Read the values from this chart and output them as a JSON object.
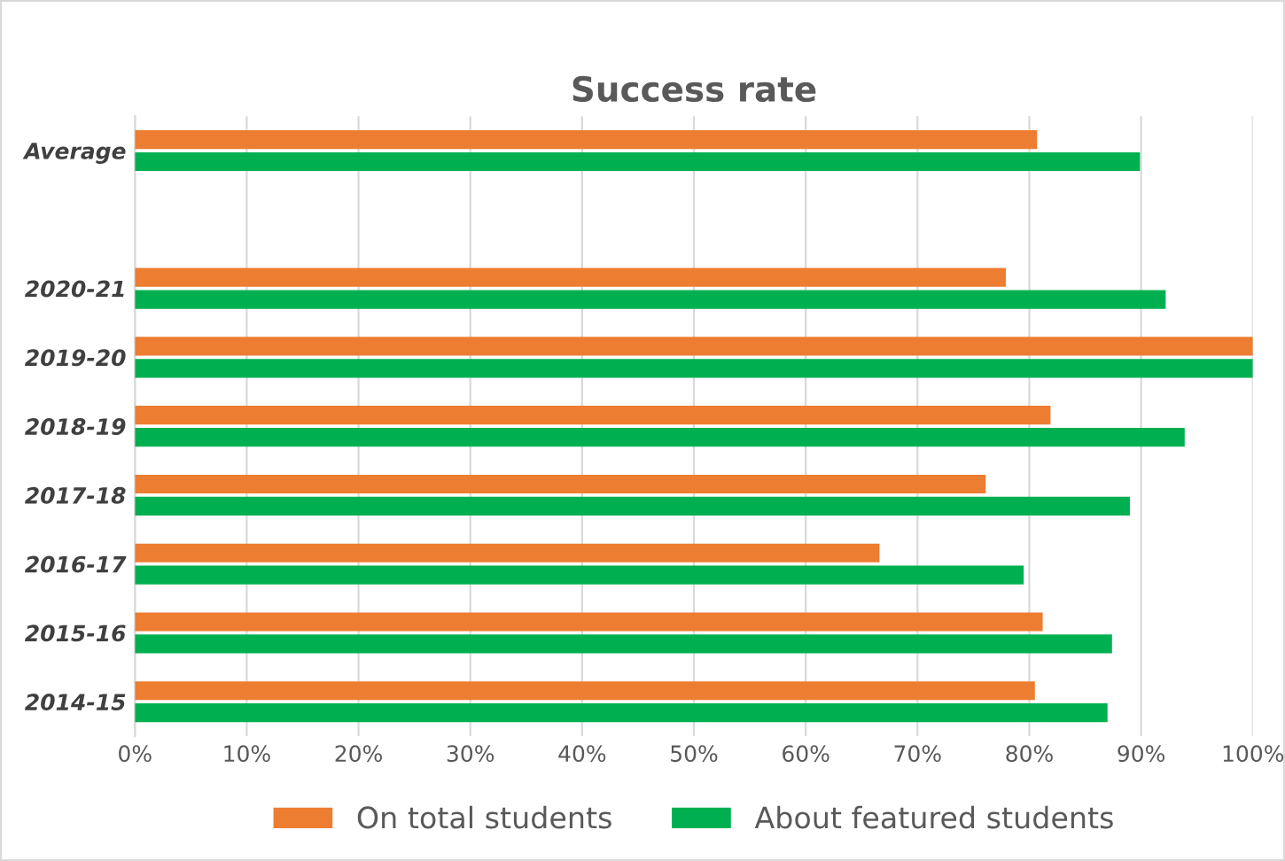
{
  "chart_data": {
    "type": "bar",
    "orientation": "horizontal",
    "title": "Success rate",
    "categories": [
      "Average",
      null,
      "2020-21",
      "2019-20",
      "2018-19",
      "2017-18",
      "2016-17",
      "2015-16",
      "2014-15"
    ],
    "series": [
      {
        "name": "On total students",
        "color": "#ed7d31",
        "values": [
          80.7,
          null,
          77.9,
          100,
          81.9,
          76.1,
          66.6,
          81.2,
          80.5
        ]
      },
      {
        "name": "About featured students",
        "color": "#00b050",
        "values": [
          89.9,
          null,
          92.2,
          100,
          93.9,
          89.0,
          79.5,
          87.4,
          87.0
        ]
      }
    ],
    "xlim": [
      0,
      100
    ],
    "xticks": [
      {
        "value": 0,
        "label": "0%"
      },
      {
        "value": 10,
        "label": "10%"
      },
      {
        "value": 20,
        "label": "20%"
      },
      {
        "value": 30,
        "label": "30%"
      },
      {
        "value": 40,
        "label": "40%"
      },
      {
        "value": 50,
        "label": "50%"
      },
      {
        "value": 60,
        "label": "60%"
      },
      {
        "value": 70,
        "label": "70%"
      },
      {
        "value": 80,
        "label": "80%"
      },
      {
        "value": 90,
        "label": "90%"
      },
      {
        "value": 100,
        "label": "100%"
      }
    ],
    "grid": "x",
    "legend": "bottom"
  }
}
